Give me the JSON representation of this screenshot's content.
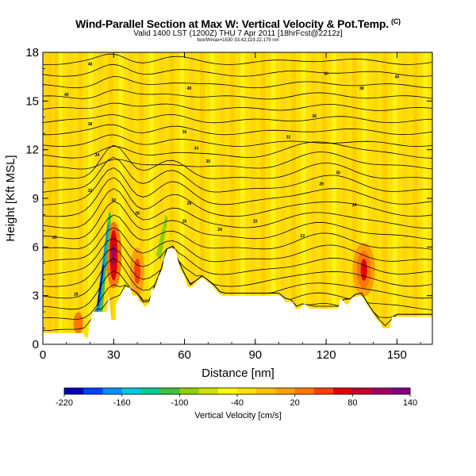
{
  "chart_data": {
    "type": "heatmap",
    "title": "Wind-Parallel Section at Max W: Vertical Velocity & Pot.Temp.",
    "title_mark": "(C)",
    "subtitle": "Valid 1400 LST (1200Z) THU 7 Apr 2011 [18hrFcst@2212z]",
    "subtitle2": "box/Wmax=1530 33.42,119.22,179 nm",
    "xlabel": "Distance [nm]",
    "ylabel": "Height [Kft MSL]",
    "xlim": [
      0,
      165
    ],
    "ylim": [
      0,
      18
    ],
    "xticks": [
      "0",
      "30",
      "60",
      "90",
      "120",
      "150"
    ],
    "yticks": [
      "0",
      "3",
      "6",
      "9",
      "12",
      "15",
      "18"
    ],
    "colorbar": {
      "label": "Vertical Velocity [cm/s]",
      "range": [
        -220,
        140
      ],
      "tick_labels": [
        "-220",
        "-160",
        "-100",
        "-40",
        "20",
        "80",
        "140"
      ],
      "colors": [
        "#0000b0",
        "#0040ff",
        "#0090ff",
        "#00c8e0",
        "#00c890",
        "#40c040",
        "#90d000",
        "#d0e000",
        "#ffff00",
        "#ffe000",
        "#ffc000",
        "#ffa000",
        "#ff7800",
        "#ff4000",
        "#e00000",
        "#c00030",
        "#a00060",
        "#800080"
      ]
    },
    "contour_labels": [
      "48",
      "40",
      "40",
      "40",
      "40",
      "38",
      "38",
      "36",
      "36",
      "34",
      "34",
      "32",
      "32",
      "30",
      "30",
      "30",
      "28",
      "28",
      "26",
      "26",
      "24",
      "24",
      "22",
      "22",
      "20",
      "18"
    ],
    "updraft_cores": [
      {
        "x": 30,
        "z": 5.5,
        "w": 120
      },
      {
        "x": 136,
        "z": 4.6,
        "w": 90
      },
      {
        "x": 40,
        "z": 4.5,
        "w": 60
      }
    ],
    "downdraft_cores": [
      {
        "x": 24,
        "z": 3.5,
        "w": -200
      },
      {
        "x": 50,
        "z": 6.5,
        "w": -80
      }
    ],
    "terrain": [
      [
        0,
        0.7
      ],
      [
        17,
        0.7
      ],
      [
        18,
        0.4
      ],
      [
        19,
        0.4
      ],
      [
        20,
        1.3
      ],
      [
        21,
        2.0
      ],
      [
        25,
        2.0
      ],
      [
        27,
        2.0
      ],
      [
        28,
        3.0
      ],
      [
        29,
        1.5
      ],
      [
        31,
        1.5
      ],
      [
        31,
        2.5
      ],
      [
        33,
        3.0
      ],
      [
        35,
        3.5
      ],
      [
        37,
        3.5
      ],
      [
        38,
        3.0
      ],
      [
        40,
        3.0
      ],
      [
        41,
        2.6
      ],
      [
        42,
        2.6
      ],
      [
        43,
        2.3
      ],
      [
        45,
        2.5
      ],
      [
        46,
        3.3
      ],
      [
        48,
        3.6
      ],
      [
        49,
        4.2
      ],
      [
        51,
        4.7
      ],
      [
        51,
        5.2
      ],
      [
        53,
        5.9
      ],
      [
        56,
        5.9
      ],
      [
        57,
        5.4
      ],
      [
        58,
        4.6
      ],
      [
        60,
        4.2
      ],
      [
        61,
        3.6
      ],
      [
        62,
        3.5
      ],
      [
        64,
        3.6
      ],
      [
        66,
        4.0
      ],
      [
        68,
        4.1
      ],
      [
        70,
        3.8
      ],
      [
        72,
        3.6
      ],
      [
        74,
        3.2
      ],
      [
        76,
        3.0
      ],
      [
        85,
        3.0
      ],
      [
        90,
        3.0
      ],
      [
        97,
        3.0
      ],
      [
        101,
        3.0
      ],
      [
        103,
        2.6
      ],
      [
        106,
        2.6
      ],
      [
        107,
        2.2
      ],
      [
        109,
        2.2
      ],
      [
        111,
        2.5
      ],
      [
        113,
        2.2
      ],
      [
        125,
        2.2
      ],
      [
        126,
        2.8
      ],
      [
        127,
        2.7
      ],
      [
        129,
        2.4
      ],
      [
        131,
        2.9
      ],
      [
        135,
        3.0
      ],
      [
        137,
        2.5
      ],
      [
        139,
        2.1
      ],
      [
        141,
        1.6
      ],
      [
        143,
        1.3
      ],
      [
        144,
        1.0
      ],
      [
        147,
        1.0
      ],
      [
        148,
        1.7
      ],
      [
        150,
        1.7
      ],
      [
        165,
        1.7
      ]
    ]
  }
}
